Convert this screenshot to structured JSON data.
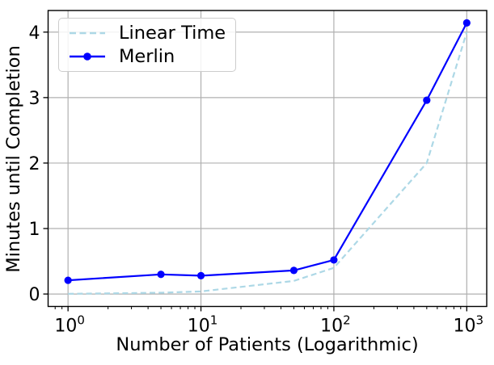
{
  "figure": {
    "background": "#ffffff"
  },
  "chart_data": {
    "type": "line",
    "title": "",
    "xlabel": "Number of Patients (Logarithmic)",
    "ylabel": "Minutes until Completion",
    "x_scale": "log",
    "x": [
      1,
      5,
      10,
      50,
      100,
      500,
      1000
    ],
    "series": [
      {
        "name": "Linear Time",
        "color": "#ADD8E6",
        "line_style": "dashed",
        "marker": "none",
        "values": [
          0.004,
          0.02,
          0.04,
          0.2,
          0.4,
          2.0,
          4.0
        ]
      },
      {
        "name": "Merlin",
        "color": "#0000FF",
        "line_style": "solid",
        "marker": "circle",
        "values": [
          0.21,
          0.3,
          0.28,
          0.36,
          0.52,
          2.96,
          4.14
        ]
      }
    ],
    "xlim": [
      0.708,
      1413
    ],
    "ylim": [
      -0.19,
      4.33
    ],
    "x_ticks": [
      1,
      10,
      100,
      1000
    ],
    "x_tick_labels": [
      {
        "base": "10",
        "exp": "0"
      },
      {
        "base": "10",
        "exp": "1"
      },
      {
        "base": "10",
        "exp": "2"
      },
      {
        "base": "10",
        "exp": "3"
      }
    ],
    "y_ticks": [
      0,
      1,
      2,
      3,
      4
    ],
    "y_tick_labels": [
      "0",
      "1",
      "2",
      "3",
      "4"
    ],
    "grid": true,
    "legend": {
      "position": "upper left"
    },
    "colors": {
      "grid": "#b0b0b0",
      "frame": "#000000",
      "tick_text": "#000000"
    }
  }
}
